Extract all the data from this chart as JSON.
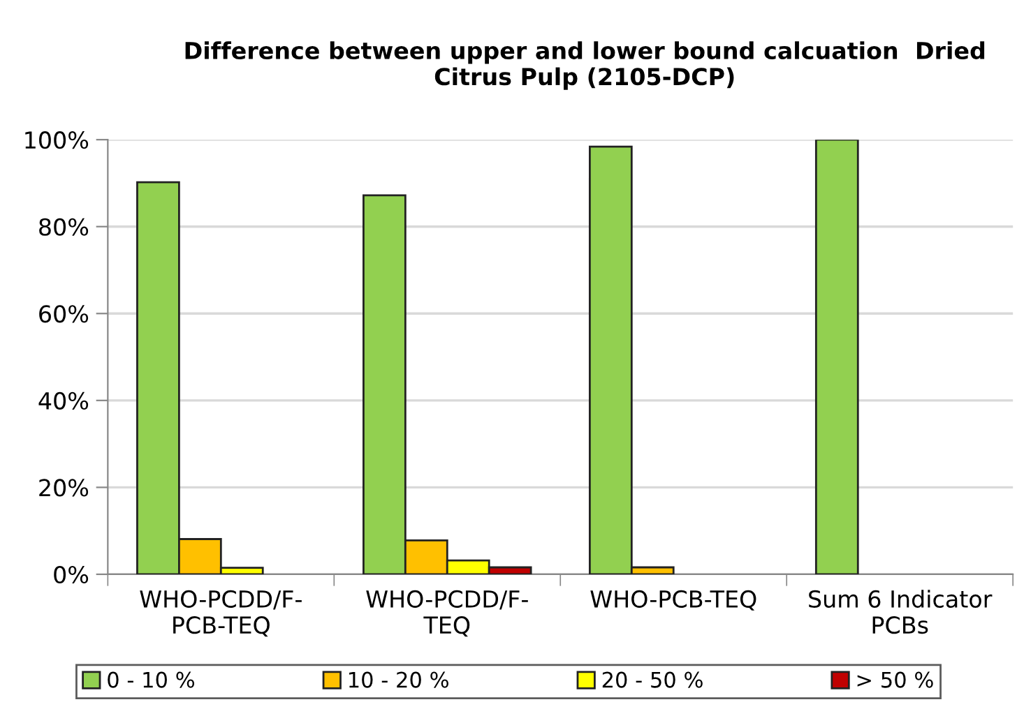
{
  "chart_data": {
    "type": "bar",
    "title": "Difference between upper and lower bound calcuation  Dried Citrus Pulp (2105-DCP)",
    "categories": [
      "WHO-PCDD/F-\nPCB-TEQ",
      "WHO-PCDD/F-\nTEQ",
      "WHO-PCB-TEQ",
      "Sum 6 Indicator\nPCBs"
    ],
    "series": [
      {
        "name": "0 - 10 %",
        "color": "#92d050",
        "values": [
          90.2,
          87.2,
          98.4,
          100
        ]
      },
      {
        "name": "10 - 20 %",
        "color": "#ffc000",
        "values": [
          8.1,
          7.8,
          1.6,
          null
        ]
      },
      {
        "name": "20 - 50 %",
        "color": "#ffff00",
        "values": [
          1.5,
          3.2,
          null,
          null
        ]
      },
      {
        "name": "> 50 %",
        "color": "#c00000",
        "values": [
          null,
          1.6,
          null,
          null
        ]
      }
    ],
    "ylim": [
      0,
      100
    ],
    "yticks": [
      {
        "value": 0,
        "label": "0%"
      },
      {
        "value": 20,
        "label": "20%"
      },
      {
        "value": 40,
        "label": "40%"
      },
      {
        "value": 60,
        "label": "60%"
      },
      {
        "value": 80,
        "label": "80%"
      },
      {
        "value": 100,
        "label": "100%"
      }
    ],
    "grid": "y",
    "legend": "bottom"
  }
}
